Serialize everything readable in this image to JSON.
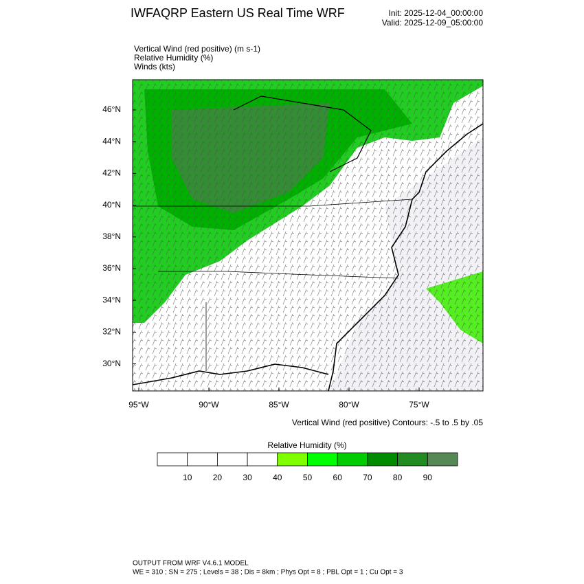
{
  "header": {
    "title": "IWFAQRP Eastern US Real Time WRF",
    "init": "Init: 2025-12-04_00:00:00",
    "valid": "Valid: 2025-12-09_05:00:00"
  },
  "fields": [
    "Vertical Wind (red positive)   (m s-1)",
    "Relative Humidity   (%)",
    "Winds   (kts)"
  ],
  "map": {
    "lat_labels": [
      "46°N",
      "44°N",
      "42°N",
      "40°N",
      "38°N",
      "36°N",
      "34°N",
      "32°N",
      "30°N"
    ],
    "lon_labels": [
      "95°W",
      "90°W",
      "85°W",
      "80°W",
      "75°W"
    ],
    "contour_note": "Vertical Wind (red positive) Contours: -.5 to .5 by .05"
  },
  "colorbar": {
    "title": "Relative Humidity  (%)",
    "labels": [
      10,
      20,
      30,
      40,
      50,
      60,
      70,
      80,
      90
    ],
    "colors": [
      "#ffffff",
      "#ffffff",
      "#ffffff",
      "#ffffff",
      "#80ff00",
      "#00ff00",
      "#00cc00",
      "#008b00",
      "#228b22",
      "#558855"
    ]
  },
  "footer": {
    "line1": "OUTPUT FROM WRF V4.6.1 MODEL",
    "line2": "WE = 310 ; SN = 275 ; Levels = 38 ; Dis = 8km ; Phys Opt = 8 ; PBL Opt = 1 ; Cu Opt = 3"
  }
}
